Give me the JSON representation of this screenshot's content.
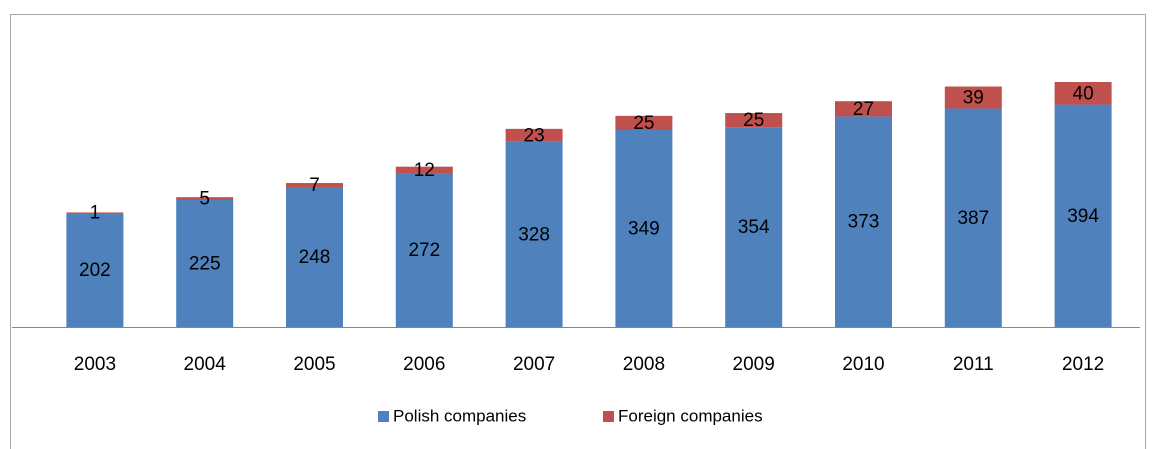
{
  "chart_data": {
    "type": "stacked_bar",
    "categories": [
      "2003",
      "2004",
      "2005",
      "2006",
      "2007",
      "2008",
      "2009",
      "2010",
      "2011",
      "2012"
    ],
    "series": [
      {
        "name": "Polish companies",
        "color": "#4f81bd",
        "values": [
          202,
          225,
          248,
          272,
          328,
          349,
          354,
          373,
          387,
          394
        ]
      },
      {
        "name": "Foreign companies",
        "color": "#c0504d",
        "values": [
          1,
          5,
          7,
          12,
          23,
          25,
          25,
          27,
          39,
          40
        ]
      }
    ],
    "legend": "bottom"
  }
}
